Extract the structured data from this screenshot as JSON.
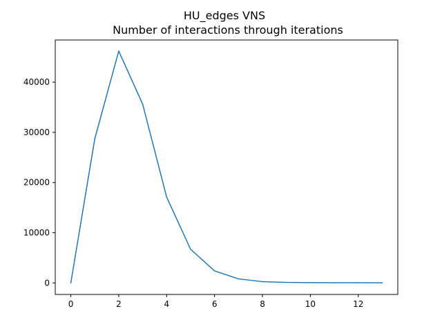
{
  "chart_data": {
    "type": "line",
    "title": "HU_edges VNS",
    "subtitle": "Number of interactions through iterations",
    "xlabel": "",
    "ylabel": "",
    "xlim": [
      -0.65,
      13.65
    ],
    "ylim": [
      -2300,
      48400
    ],
    "xticks": [
      0,
      2,
      4,
      6,
      8,
      10,
      12
    ],
    "yticks": [
      0,
      10000,
      20000,
      30000,
      40000
    ],
    "grid": false,
    "series": [
      {
        "color": "#1f77b4",
        "x": [
          0,
          1,
          2,
          3,
          4,
          5,
          6,
          7,
          8,
          9,
          10,
          11,
          12,
          13
        ],
        "y": [
          0,
          28700,
          46200,
          35600,
          17100,
          6700,
          2400,
          800,
          250,
          100,
          60,
          30,
          40,
          20
        ]
      }
    ]
  }
}
